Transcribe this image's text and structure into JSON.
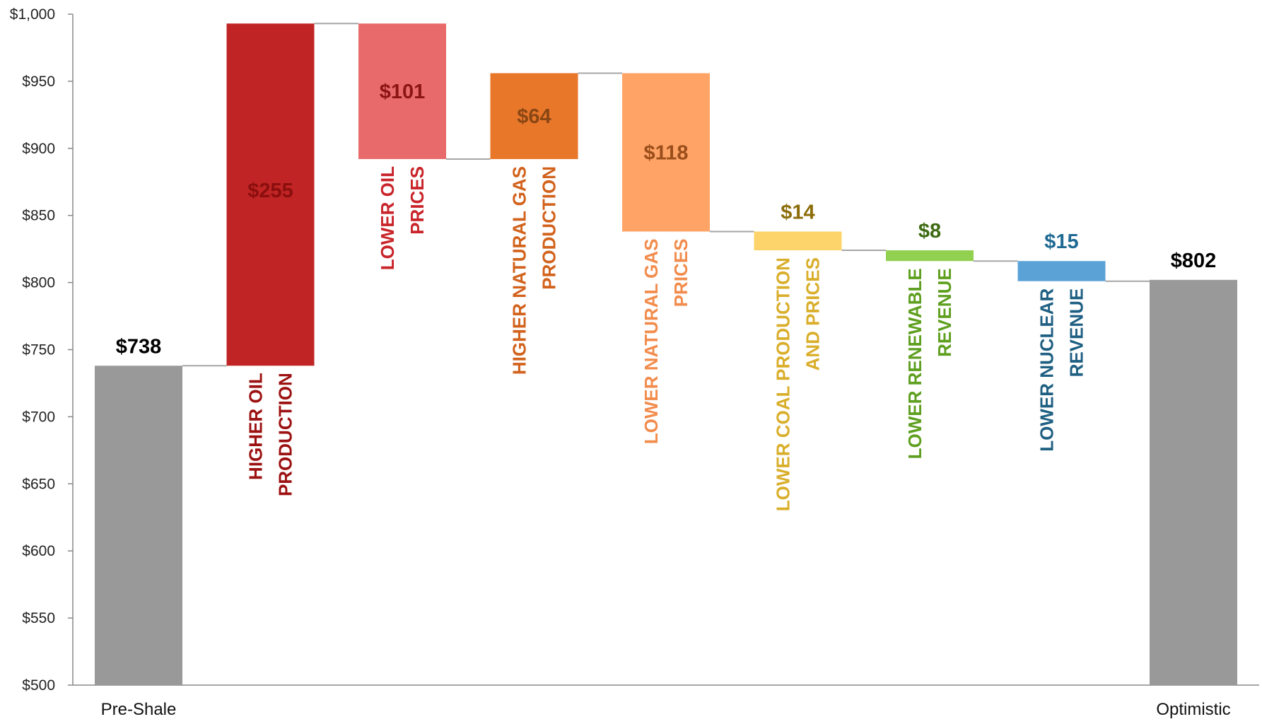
{
  "chart_data": {
    "type": "waterfall",
    "ylim": [
      500,
      1000
    ],
    "yticks": [
      500,
      550,
      600,
      650,
      700,
      750,
      800,
      850,
      900,
      950,
      1000
    ],
    "ytick_labels": [
      "$500",
      "$550",
      "$600",
      "$650",
      "$700",
      "$750",
      "$800",
      "$850",
      "$900",
      "$950",
      "$1,000"
    ],
    "steps": [
      {
        "kind": "total",
        "value": 738,
        "value_label": "$738",
        "category": "Pre-Shale",
        "color": "#999999",
        "label_color": "#000000"
      },
      {
        "kind": "delta",
        "value": 255,
        "value_label": "$255",
        "bar_label": [
          "HIGHER OIL",
          "PRODUCTION"
        ],
        "color": "#C02424",
        "label_color": "#8B0E0E",
        "text_color": "#9C1111",
        "label_pos": "inside"
      },
      {
        "kind": "delta",
        "value": -101,
        "value_label": "$101",
        "bar_label": [
          "LOWER OIL",
          "PRICES"
        ],
        "color": "#E86A6A",
        "label_color": "#8B1414",
        "text_color": "#C9242A",
        "label_pos": "inside"
      },
      {
        "kind": "delta",
        "value": 64,
        "value_label": "$64",
        "bar_label": [
          "HIGHER NATURAL GAS",
          "PRODUCTION"
        ],
        "color": "#E8772A",
        "label_color": "#8A4614",
        "text_color": "#D2621C",
        "label_pos": "inside"
      },
      {
        "kind": "delta",
        "value": -118,
        "value_label": "$118",
        "bar_label": [
          "LOWER NATURAL GAS",
          "PRICES"
        ],
        "color": "#FFA366",
        "label_color": "#9A4E1B",
        "text_color": "#F28C4C",
        "label_pos": "inside"
      },
      {
        "kind": "delta",
        "value": -14,
        "value_label": "$14",
        "bar_label": [
          "LOWER COAL PRODUCTION",
          "AND PRICES"
        ],
        "color": "#FDD46B",
        "label_color": "#8C6D0A",
        "text_color": "#D9AE2A",
        "label_pos": "above"
      },
      {
        "kind": "delta",
        "value": -8,
        "value_label": "$8",
        "bar_label": [
          "LOWER RENEWABLE",
          "REVENUE"
        ],
        "color": "#92D050",
        "label_color": "#3D6A12",
        "text_color": "#5E9F1F",
        "label_pos": "above"
      },
      {
        "kind": "delta",
        "value": -15,
        "value_label": "$15",
        "bar_label": [
          "LOWER NUCLEAR",
          "REVENUE"
        ],
        "color": "#5BA3D6",
        "label_color": "#1F6A93",
        "text_color": "#1E5F82",
        "label_pos": "above"
      },
      {
        "kind": "total",
        "value": 802,
        "value_label": "$802",
        "category": "Optimistic",
        "color": "#999999",
        "label_color": "#000000"
      }
    ]
  }
}
